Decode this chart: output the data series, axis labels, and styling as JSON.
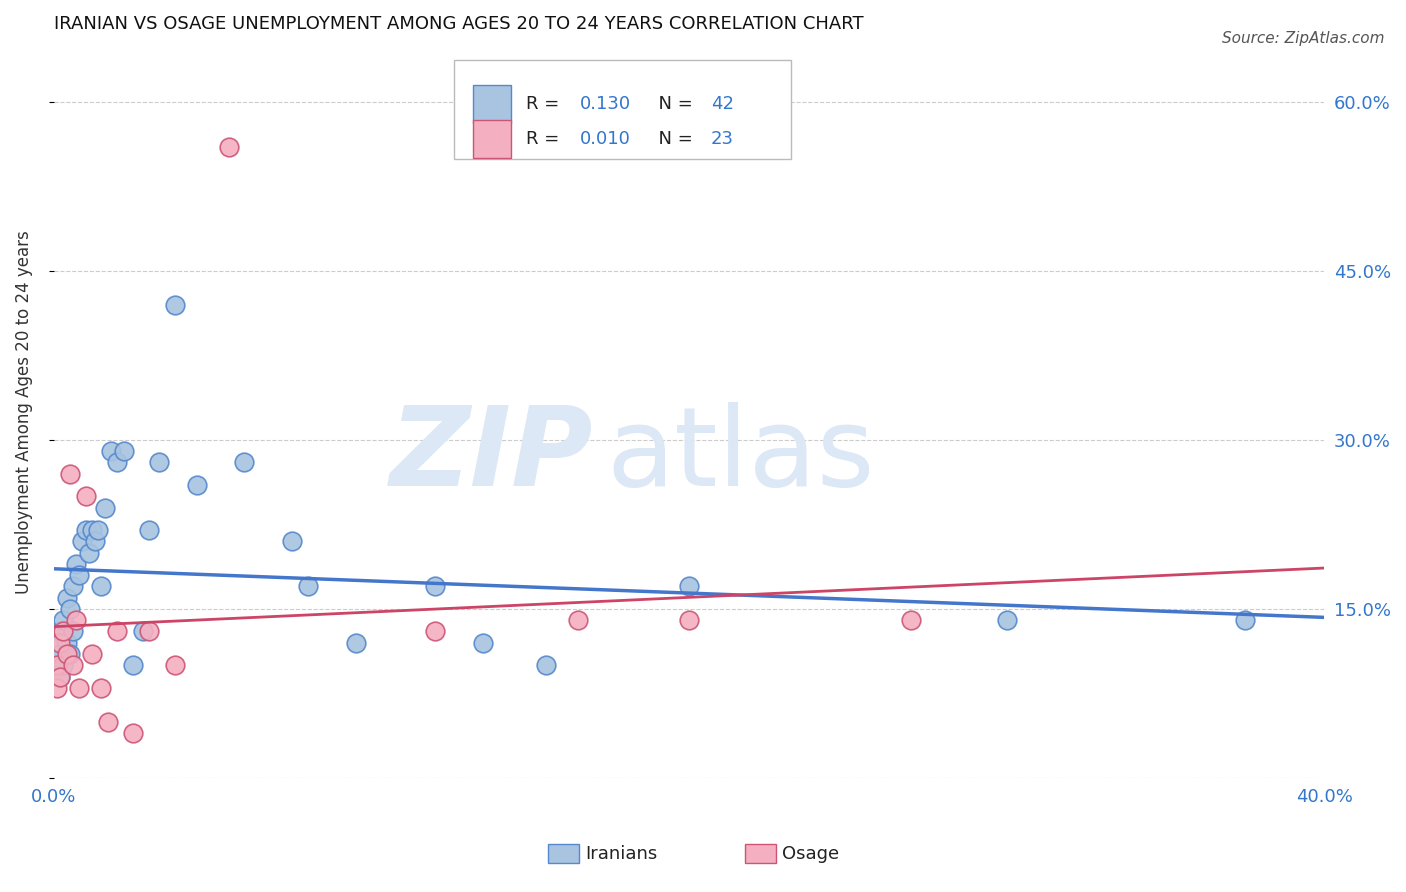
{
  "title": "IRANIAN VS OSAGE UNEMPLOYMENT AMONG AGES 20 TO 24 YEARS CORRELATION CHART",
  "source": "Source: ZipAtlas.com",
  "ylabel": "Unemployment Among Ages 20 to 24 years",
  "xlim": [
    0.0,
    0.4
  ],
  "ylim": [
    0.0,
    0.65
  ],
  "background_color": "#ffffff",
  "grid_color": "#cccccc",
  "iranians_color": "#a8c4e0",
  "iranians_edge_color": "#5588cc",
  "iranians_line_color": "#4477cc",
  "osage_color": "#f4b0c0",
  "osage_edge_color": "#cc5577",
  "osage_line_color": "#cc4466",
  "R_iranians": 0.13,
  "N_iranians": 42,
  "R_osage": 0.01,
  "N_osage": 23,
  "iranians_x": [
    0.001,
    0.001,
    0.002,
    0.002,
    0.002,
    0.003,
    0.003,
    0.004,
    0.004,
    0.005,
    0.005,
    0.006,
    0.006,
    0.007,
    0.008,
    0.009,
    0.01,
    0.011,
    0.012,
    0.013,
    0.014,
    0.015,
    0.016,
    0.018,
    0.02,
    0.022,
    0.025,
    0.028,
    0.03,
    0.033,
    0.038,
    0.045,
    0.06,
    0.075,
    0.08,
    0.095,
    0.12,
    0.135,
    0.155,
    0.2,
    0.3,
    0.375
  ],
  "iranians_y": [
    0.12,
    0.1,
    0.13,
    0.11,
    0.09,
    0.14,
    0.1,
    0.16,
    0.12,
    0.15,
    0.11,
    0.17,
    0.13,
    0.19,
    0.18,
    0.21,
    0.22,
    0.2,
    0.22,
    0.21,
    0.22,
    0.17,
    0.24,
    0.29,
    0.28,
    0.29,
    0.1,
    0.13,
    0.22,
    0.28,
    0.42,
    0.26,
    0.28,
    0.21,
    0.17,
    0.12,
    0.17,
    0.12,
    0.1,
    0.17,
    0.14,
    0.14
  ],
  "osage_x": [
    0.001,
    0.001,
    0.002,
    0.002,
    0.003,
    0.004,
    0.005,
    0.006,
    0.007,
    0.008,
    0.01,
    0.012,
    0.015,
    0.017,
    0.02,
    0.025,
    0.03,
    0.038,
    0.055,
    0.12,
    0.165,
    0.2,
    0.27
  ],
  "osage_y": [
    0.1,
    0.08,
    0.12,
    0.09,
    0.13,
    0.11,
    0.27,
    0.1,
    0.14,
    0.08,
    0.25,
    0.11,
    0.08,
    0.05,
    0.13,
    0.04,
    0.13,
    0.1,
    0.56,
    0.13,
    0.14,
    0.14,
    0.14
  ],
  "watermark_zip": "ZIP",
  "watermark_atlas": "atlas",
  "watermark_color": "#dce8f5"
}
